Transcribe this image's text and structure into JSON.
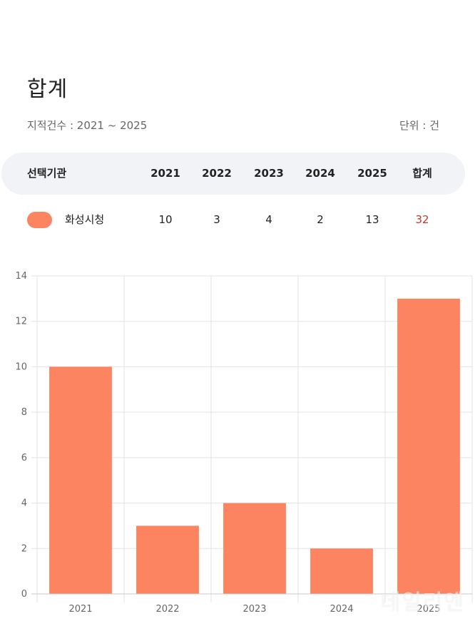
{
  "header": {
    "title": "합계",
    "subtitle": "지적건수 : 2021 ~ 2025",
    "unit": "단위 : 건"
  },
  "table": {
    "columns": [
      "선택기관",
      "2021",
      "2022",
      "2023",
      "2024",
      "2025",
      "합계"
    ],
    "rows": [
      {
        "name": "화성시청",
        "values": [
          "10",
          "3",
          "4",
          "2",
          "13"
        ],
        "total": "32"
      }
    ]
  },
  "colors": {
    "bar": "#fd8460",
    "grid": "#e3e3e3",
    "axis_text": "#666666",
    "total": "#c0392b"
  },
  "chart_data": {
    "type": "bar",
    "categories": [
      "2021",
      "2022",
      "2023",
      "2024",
      "2025"
    ],
    "values": [
      10,
      3,
      4,
      2,
      13
    ],
    "ylim": [
      0,
      14
    ],
    "yticks": [
      0,
      2,
      4,
      6,
      8,
      10,
      12,
      14
    ],
    "title": "",
    "xlabel": "",
    "ylabel": "",
    "grid": true
  },
  "watermark": "데일리엔"
}
